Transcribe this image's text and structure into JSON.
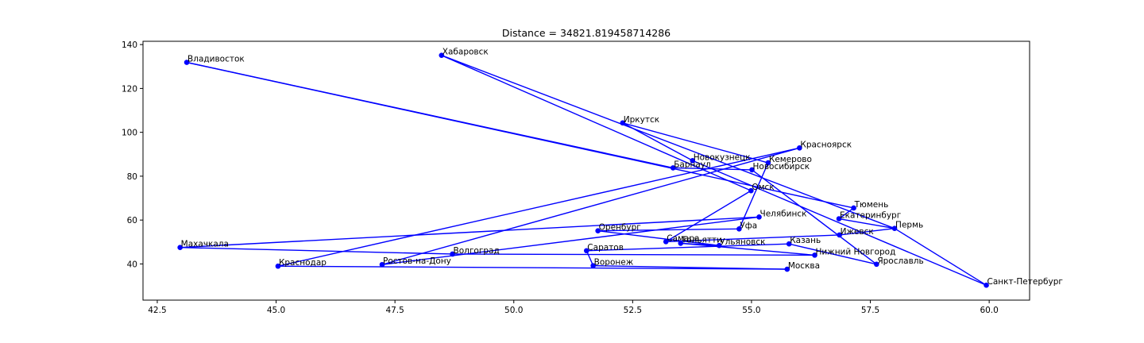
{
  "chart_data": {
    "type": "line",
    "title": "Distance = 34821.819458714286",
    "xlabel": "",
    "ylabel": "",
    "xlim": [
      42.2,
      60.85
    ],
    "ylim": [
      23.5,
      141.5
    ],
    "xticks": [
      "42.5",
      "45.0",
      "47.5",
      "50.0",
      "52.5",
      "55.0",
      "57.5",
      "60.0"
    ],
    "yticks": [
      "40",
      "60",
      "80",
      "100",
      "120",
      "140"
    ],
    "grid": false,
    "color": "#0000ff",
    "points": [
      {
        "name": "Владивосток",
        "x": 43.12,
        "y": 131.9
      },
      {
        "name": "Хабаровск",
        "x": 48.48,
        "y": 135.1
      },
      {
        "name": "Иркутск",
        "x": 52.29,
        "y": 104.3
      },
      {
        "name": "Красноярск",
        "x": 56.01,
        "y": 92.9
      },
      {
        "name": "Новокузнецк",
        "x": 53.76,
        "y": 87.1
      },
      {
        "name": "Барнаул",
        "x": 53.35,
        "y": 83.8
      },
      {
        "name": "Кемерово",
        "x": 55.35,
        "y": 86.1
      },
      {
        "name": "Новосибирск",
        "x": 55.01,
        "y": 82.9
      },
      {
        "name": "Омск",
        "x": 54.99,
        "y": 73.4
      },
      {
        "name": "Тюмень",
        "x": 57.15,
        "y": 65.5
      },
      {
        "name": "Челябинск",
        "x": 55.16,
        "y": 61.4
      },
      {
        "name": "Екатеринбург",
        "x": 56.84,
        "y": 60.6
      },
      {
        "name": "Пермь",
        "x": 58.01,
        "y": 56.2
      },
      {
        "name": "Уфа",
        "x": 54.74,
        "y": 55.97
      },
      {
        "name": "Ижевск",
        "x": 56.85,
        "y": 53.2
      },
      {
        "name": "Оренбург",
        "x": 51.77,
        "y": 55.1
      },
      {
        "name": "Самара",
        "x": 53.2,
        "y": 50.15
      },
      {
        "name": "Тольятти",
        "x": 53.51,
        "y": 49.42
      },
      {
        "name": "Ульяновск",
        "x": 54.32,
        "y": 48.4
      },
      {
        "name": "Казань",
        "x": 55.79,
        "y": 49.12
      },
      {
        "name": "Махачкала",
        "x": 42.98,
        "y": 47.5
      },
      {
        "name": "Саратов",
        "x": 51.53,
        "y": 46.03
      },
      {
        "name": "Волгоград",
        "x": 48.71,
        "y": 44.5
      },
      {
        "name": "Нижний Новгород",
        "x": 56.33,
        "y": 44.0
      },
      {
        "name": "Ярославль",
        "x": 57.63,
        "y": 39.87
      },
      {
        "name": "Ростов-на-Дону",
        "x": 47.23,
        "y": 39.7
      },
      {
        "name": "Краснодар",
        "x": 45.04,
        "y": 38.98
      },
      {
        "name": "Воронеж",
        "x": 51.67,
        "y": 39.2
      },
      {
        "name": "Москва",
        "x": 55.75,
        "y": 37.6
      },
      {
        "name": "Санкт-Петербург",
        "x": 59.94,
        "y": 30.3
      }
    ],
    "path": [
      "Владивосток",
      "Тюмень",
      "Екатеринбург",
      "Пермь",
      "Ижевск",
      "Самара",
      "Омск",
      "Хабаровск",
      "Пермь",
      "Санкт-Петербург",
      "Новокузнецк",
      "Иркутск",
      "Кемерово",
      "Уфа",
      "Оренбург",
      "Ульяновск",
      "Тольятти",
      "Нижний Новгород",
      "Волгоград",
      "Махачкала",
      "Челябинск",
      "Ростов-на-Дону",
      "Красноярск",
      "Краснодар",
      "Москва",
      "Воронеж",
      "Саратов",
      "Казань",
      "Ярославль",
      "Новосибирск",
      "Барнаул",
      "Владивосток"
    ]
  }
}
